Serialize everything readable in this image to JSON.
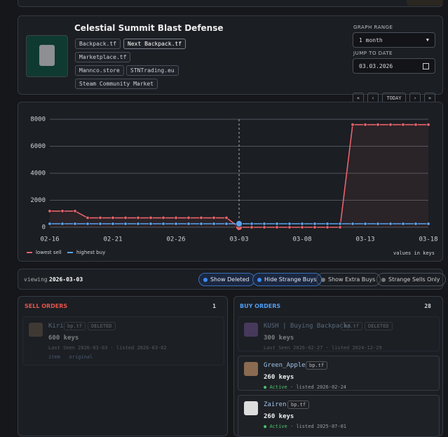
{
  "header": {
    "title": "Celestial Summit Blast Defense",
    "links": [
      "Backpack.tf",
      "Next Backpack.tf",
      "Marketplace.tf",
      "Mannco.store",
      "STNTrading.eu",
      "Steam Community Market"
    ]
  },
  "controls": {
    "range_label": "GRAPH RANGE",
    "range_value": "1 month",
    "date_label": "JUMP TO DATE",
    "date_value": "03.03.2026",
    "nav": [
      "«",
      "‹",
      "TODAY",
      "›",
      "»"
    ]
  },
  "chart_data": {
    "type": "line",
    "categories": [
      "02-16",
      null,
      null,
      null,
      null,
      "02-21",
      null,
      null,
      null,
      null,
      "02-26",
      null,
      null,
      null,
      null,
      "03-03",
      null,
      null,
      null,
      null,
      "03-08",
      null,
      null,
      null,
      null,
      "03-13",
      null,
      null,
      null,
      null,
      "03-18"
    ],
    "series": [
      {
        "name": "lowest sell",
        "color": "#e8636a",
        "values": [
          1200,
          1200,
          1200,
          700,
          700,
          700,
          700,
          700,
          700,
          700,
          700,
          700,
          700,
          700,
          700,
          0,
          0,
          0,
          0,
          0,
          0,
          0,
          0,
          0,
          7600,
          7600,
          7600,
          7600,
          7600,
          7600,
          7600
        ]
      },
      {
        "name": "highest buy",
        "color": "#5aa2ee",
        "values": [
          260,
          260,
          260,
          260,
          260,
          260,
          260,
          260,
          260,
          260,
          260,
          260,
          260,
          260,
          260,
          260,
          260,
          260,
          260,
          260,
          260,
          260,
          260,
          260,
          260,
          260,
          260,
          260,
          260,
          260,
          260
        ]
      }
    ],
    "ylim": [
      0,
      8000
    ],
    "yticks": [
      0,
      2000,
      4000,
      6000,
      8000
    ],
    "grid": true,
    "note": "values in keys"
  },
  "viewing": {
    "label": "viewing",
    "date": "2026-03-03",
    "toggles": [
      "Show Deleted",
      "Hide Strange Buys",
      "Show Extra Buys",
      "Strange Sells Only"
    ]
  },
  "sell_orders": {
    "title": "SELL ORDERS",
    "count": "1",
    "orders": [
      {
        "user": "Kiri",
        "source": "bp.tf",
        "status": "DELETED",
        "price": "600 keys",
        "last_seen": "Last Seen 2026-03-03",
        "listed": "· listed 2026-03-02",
        "links": [
          "item",
          "original"
        ]
      }
    ]
  },
  "buy_orders": {
    "title": "BUY ORDERS",
    "count": "28",
    "orders": [
      {
        "user": "KUSH | Buying Backpacks",
        "source": "bp.tf",
        "status": "DELETED",
        "price": "300 keys",
        "last_seen": "Last Seen 2026-02-27",
        "listed": "· listed 2024-12-29"
      },
      {
        "user": "Green_Apple",
        "source": "bp.tf",
        "status": "Active",
        "price": "260 keys",
        "listed": "· listed 2026-02-24"
      },
      {
        "user": "Zairen",
        "source": "bp.tf",
        "status": "Active",
        "price": "260 keys",
        "listed": "· listed 2025-07-01"
      }
    ]
  }
}
